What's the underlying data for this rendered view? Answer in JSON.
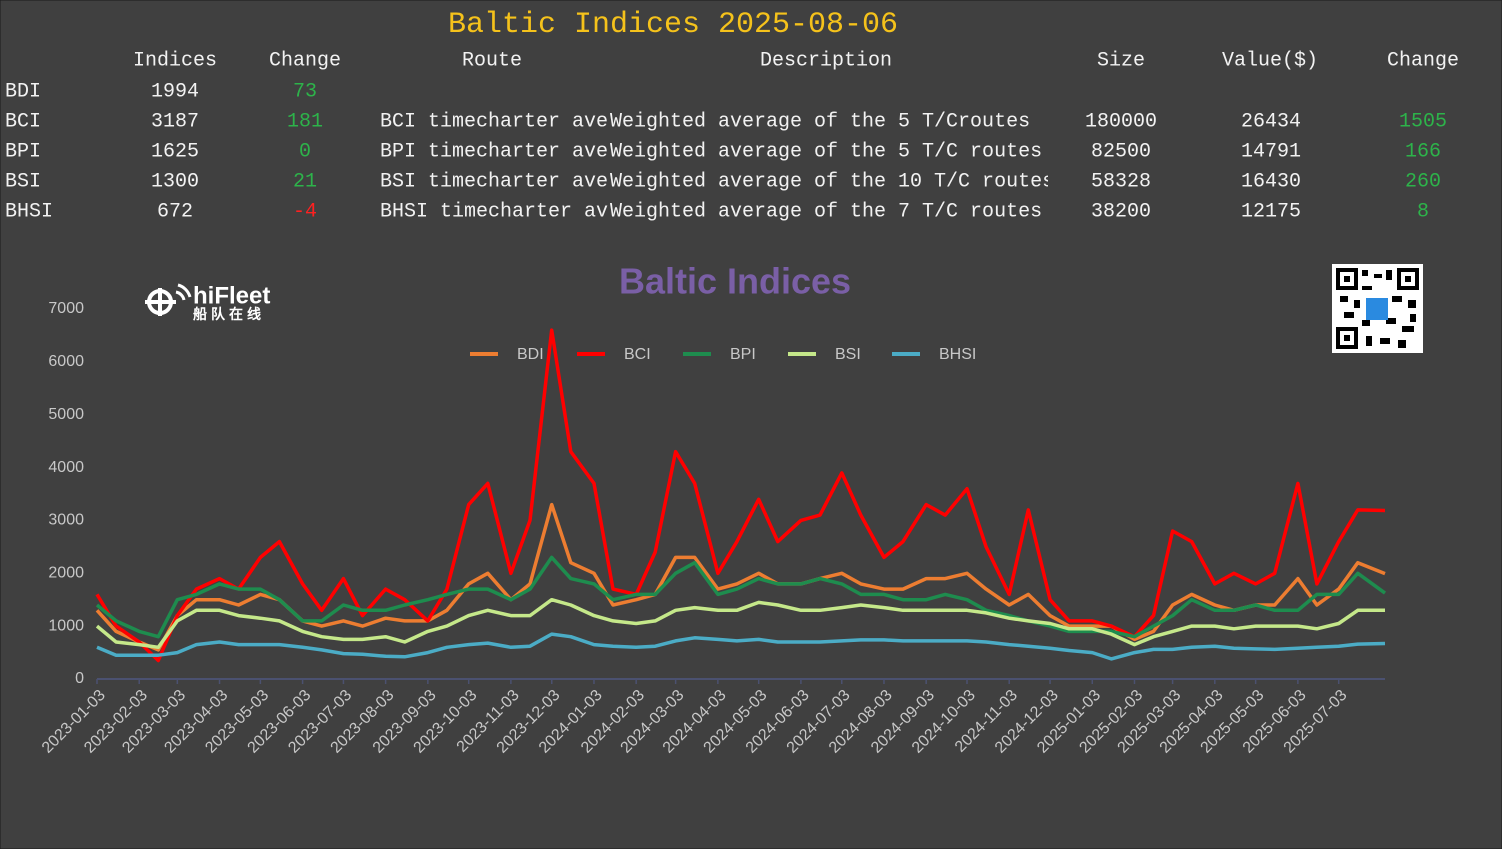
{
  "table": {
    "title": "Baltic Indices 2025-08-06",
    "headers": [
      "Indices",
      "Change",
      "Route",
      "Description",
      "Size",
      "Value($)",
      "Change"
    ],
    "rows": [
      [
        "BDI",
        1994,
        73
      ],
      [
        "BCI",
        3187,
        181,
        "BCI timecharter ave",
        "Weighted average of the 5 T/Croutes",
        180000,
        26434,
        1505
      ],
      [
        "BPI",
        1625,
        0,
        "BPI timecharter ave",
        "Weighted average of the 5 T/C routes",
        82500,
        14791,
        166
      ],
      [
        "BSI",
        1300,
        21,
        "BSI timecharter ave",
        "Weighted average of the 10 T/C routes",
        58328,
        16430,
        260
      ],
      [
        "BHSI",
        672,
        -4,
        "BHSI timecharter av",
        "Weighted average of the 7 T/C routes",
        38200,
        12175,
        8
      ]
    ]
  },
  "logo": {
    "name": "hiFleet",
    "tagline": "船队在线"
  },
  "chart_data": {
    "type": "line",
    "title": "Baltic Indices",
    "x": [
      "2023-01-03",
      "2023-01-17",
      "2023-02-03",
      "2023-02-17",
      "2023-03-03",
      "2023-03-17",
      "2023-04-03",
      "2023-04-17",
      "2023-05-03",
      "2023-05-17",
      "2023-06-03",
      "2023-06-17",
      "2023-07-03",
      "2023-07-17",
      "2023-08-03",
      "2023-08-17",
      "2023-09-03",
      "2023-09-17",
      "2023-10-03",
      "2023-10-17",
      "2023-11-03",
      "2023-11-17",
      "2023-12-03",
      "2023-12-17",
      "2024-01-03",
      "2024-01-17",
      "2024-02-03",
      "2024-02-17",
      "2024-03-03",
      "2024-03-17",
      "2024-04-03",
      "2024-04-17",
      "2024-05-03",
      "2024-05-17",
      "2024-06-03",
      "2024-06-17",
      "2024-07-03",
      "2024-07-17",
      "2024-08-03",
      "2024-08-17",
      "2024-09-03",
      "2024-09-17",
      "2024-10-03",
      "2024-10-17",
      "2024-11-03",
      "2024-11-17",
      "2024-12-03",
      "2024-12-17",
      "2025-01-03",
      "2025-01-17",
      "2025-02-03",
      "2025-02-17",
      "2025-03-03",
      "2025-03-17",
      "2025-04-03",
      "2025-04-17",
      "2025-05-03",
      "2025-05-17",
      "2025-06-03",
      "2025-06-17",
      "2025-07-03",
      "2025-07-17",
      "2025-08-06"
    ],
    "series": [
      {
        "name": "BDI",
        "color": "#ed7d31",
        "values": [
          1300,
          900,
          700,
          550,
          1200,
          1500,
          1500,
          1400,
          1600,
          1500,
          1100,
          1000,
          1100,
          1000,
          1150,
          1100,
          1100,
          1300,
          1800,
          2000,
          1500,
          1800,
          3300,
          2200,
          2000,
          1400,
          1500,
          1600,
          2300,
          2300,
          1700,
          1800,
          2000,
          1800,
          1800,
          1900,
          2000,
          1800,
          1700,
          1700,
          1900,
          1900,
          2000,
          1700,
          1400,
          1600,
          1200,
          1000,
          1000,
          1000,
          750,
          900,
          1400,
          1600,
          1400,
          1300,
          1400,
          1400,
          1900,
          1400,
          1700,
          2200,
          1994
        ]
      },
      {
        "name": "BCI",
        "color": "#ff0000",
        "values": [
          1600,
          1000,
          700,
          350,
          1200,
          1700,
          1900,
          1700,
          2300,
          2600,
          1800,
          1300,
          1900,
          1200,
          1700,
          1500,
          1100,
          1700,
          3300,
          3700,
          2000,
          3000,
          6600,
          4300,
          3700,
          1700,
          1600,
          2400,
          4300,
          3700,
          2000,
          2600,
          3400,
          2600,
          3000,
          3100,
          3900,
          3100,
          2300,
          2600,
          3300,
          3100,
          3600,
          2500,
          1600,
          3200,
          1500,
          1100,
          1100,
          1000,
          800,
          1200,
          2800,
          2600,
          1800,
          2000,
          1800,
          2000,
          3700,
          1800,
          2600,
          3200,
          3187
        ]
      },
      {
        "name": "BPI",
        "color": "#1e8c4e",
        "values": [
          1400,
          1100,
          900,
          800,
          1500,
          1600,
          1800,
          1700,
          1700,
          1500,
          1100,
          1100,
          1400,
          1300,
          1300,
          1400,
          1500,
          1600,
          1700,
          1700,
          1500,
          1700,
          2300,
          1900,
          1800,
          1500,
          1600,
          1600,
          2000,
          2200,
          1600,
          1700,
          1900,
          1800,
          1800,
          1900,
          1800,
          1600,
          1600,
          1500,
          1500,
          1600,
          1500,
          1300,
          1200,
          1100,
          1000,
          900,
          900,
          900,
          800,
          1000,
          1200,
          1500,
          1300,
          1300,
          1400,
          1300,
          1300,
          1600,
          1600,
          2000,
          1625
        ]
      },
      {
        "name": "BSI",
        "color": "#c5e88a",
        "values": [
          1000,
          700,
          650,
          600,
          1100,
          1300,
          1300,
          1200,
          1150,
          1100,
          900,
          800,
          750,
          750,
          800,
          700,
          900,
          1000,
          1200,
          1300,
          1200,
          1200,
          1500,
          1400,
          1200,
          1100,
          1050,
          1100,
          1300,
          1350,
          1300,
          1300,
          1450,
          1400,
          1300,
          1300,
          1350,
          1400,
          1350,
          1300,
          1300,
          1300,
          1300,
          1250,
          1150,
          1100,
          1050,
          950,
          950,
          850,
          650,
          800,
          900,
          1000,
          1000,
          950,
          1000,
          1000,
          1000,
          950,
          1050,
          1300,
          1300
        ]
      },
      {
        "name": "BHSI",
        "color": "#4bacc6",
        "values": [
          600,
          450,
          450,
          450,
          500,
          650,
          700,
          650,
          650,
          650,
          600,
          550,
          480,
          470,
          430,
          420,
          500,
          600,
          650,
          680,
          600,
          620,
          850,
          800,
          650,
          620,
          600,
          620,
          720,
          780,
          750,
          720,
          750,
          700,
          700,
          700,
          720,
          740,
          740,
          720,
          720,
          720,
          720,
          700,
          650,
          620,
          580,
          540,
          500,
          380,
          500,
          560,
          560,
          600,
          620,
          580,
          570,
          560,
          580,
          600,
          620,
          660,
          672
        ]
      }
    ],
    "xlim": [
      "2023-01-03",
      "2025-08-06"
    ],
    "xticks": [
      "2023-01-03",
      "2023-02-03",
      "2023-03-03",
      "2023-04-03",
      "2023-05-03",
      "2023-06-03",
      "2023-07-03",
      "2023-08-03",
      "2023-09-03",
      "2023-10-03",
      "2023-11-03",
      "2023-12-03",
      "2024-01-03",
      "2024-02-03",
      "2024-03-03",
      "2024-04-03",
      "2024-05-03",
      "2024-06-03",
      "2024-07-03",
      "2024-08-03",
      "2024-09-03",
      "2024-10-03",
      "2024-11-03",
      "2024-12-03",
      "2025-01-03",
      "2025-02-03",
      "2025-03-03",
      "2025-04-03",
      "2025-05-03",
      "2025-06-03",
      "2025-07-03"
    ],
    "ylim": [
      0,
      7000
    ],
    "yticks": [
      0,
      1000,
      2000,
      3000,
      4000,
      5000,
      6000,
      7000
    ],
    "legend": "top",
    "positive_color": "#2db34a",
    "negative_color": "#ff2020"
  }
}
